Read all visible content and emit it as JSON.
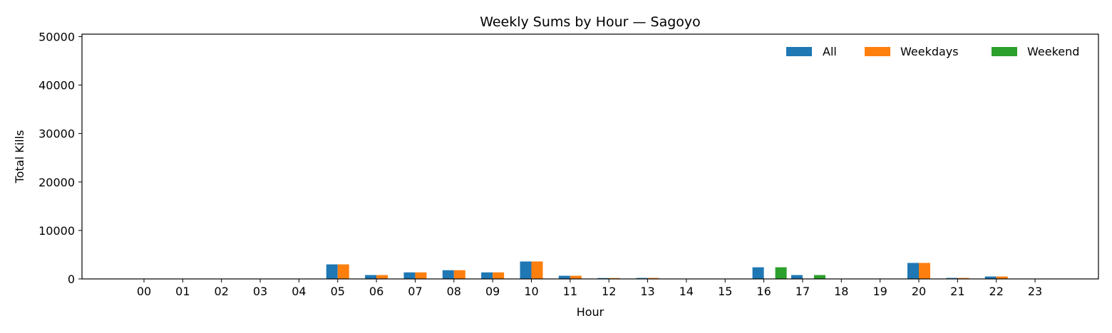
{
  "chart_data": {
    "type": "bar",
    "title": "Weekly Sums by Hour — Sagoyo",
    "xlabel": "Hour",
    "ylabel": "Total Kills",
    "ylim": [
      0,
      50500
    ],
    "yticks": [
      0,
      10000,
      20000,
      30000,
      40000,
      50000
    ],
    "grid": false,
    "legend_position": "top-right",
    "categories": [
      "00",
      "01",
      "02",
      "03",
      "04",
      "05",
      "06",
      "07",
      "08",
      "09",
      "10",
      "11",
      "12",
      "13",
      "14",
      "15",
      "16",
      "17",
      "18",
      "19",
      "20",
      "21",
      "22",
      "23"
    ],
    "series": [
      {
        "name": "All",
        "color": "#1f77b4",
        "values": [
          0,
          0,
          0,
          0,
          0,
          3000,
          800,
          1350,
          1800,
          1350,
          3600,
          650,
          180,
          200,
          0,
          0,
          2400,
          800,
          0,
          0,
          3300,
          200,
          500,
          0
        ]
      },
      {
        "name": "Weekdays",
        "color": "#ff7f0e",
        "values": [
          0,
          0,
          0,
          0,
          0,
          3000,
          800,
          1350,
          1800,
          1350,
          3600,
          650,
          180,
          200,
          0,
          0,
          0,
          0,
          0,
          0,
          3300,
          200,
          500,
          0
        ]
      },
      {
        "name": "Weekend",
        "color": "#2ca02c",
        "values": [
          0,
          0,
          0,
          0,
          0,
          0,
          0,
          0,
          0,
          0,
          0,
          0,
          0,
          0,
          0,
          0,
          2400,
          800,
          0,
          0,
          0,
          0,
          0,
          0
        ]
      }
    ]
  }
}
